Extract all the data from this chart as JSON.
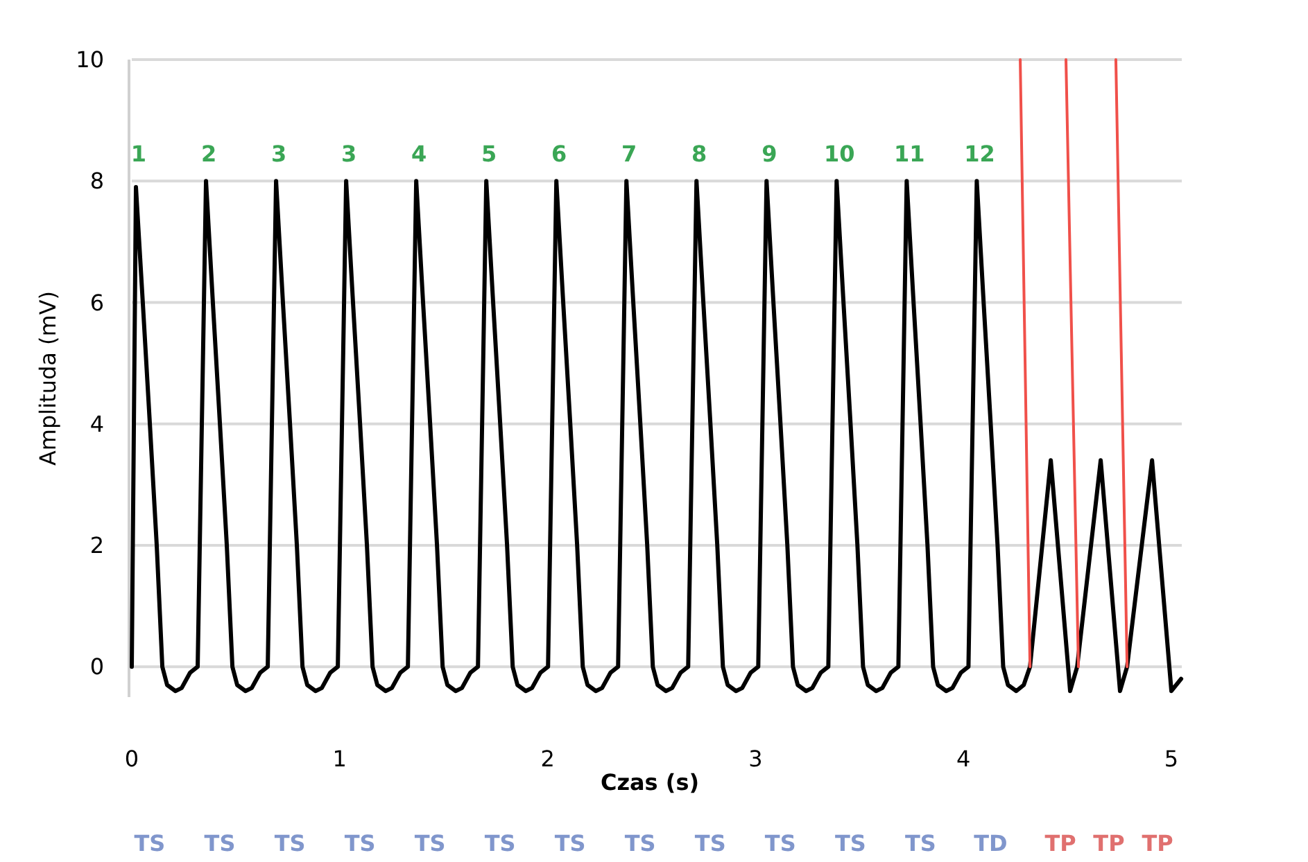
{
  "chart_data": {
    "type": "line",
    "xlabel": "Czas (s)",
    "ylabel": "Amplituda (mV)",
    "xlim": [
      0,
      5.05
    ],
    "ylim": [
      -0.5,
      10
    ],
    "xticks": [
      0,
      1,
      2,
      3,
      4,
      5
    ],
    "yticks": [
      0,
      2,
      4,
      6,
      8,
      10
    ],
    "grid": "y",
    "line_style": "solid",
    "marker": "none",
    "series": [
      {
        "color": "#000000",
        "x": [
          0,
          0.02,
          0.053,
          0.087,
          0.12,
          0.147,
          0.17,
          0.21,
          0.24,
          0.28,
          0.317,
          0.357,
          0.39,
          0.424,
          0.457,
          0.484,
          0.507,
          0.547,
          0.577,
          0.617,
          0.654,
          0.694,
          0.727,
          0.761,
          0.794,
          0.821,
          0.844,
          0.884,
          0.914,
          0.954,
          0.991,
          1.031,
          1.064,
          1.098,
          1.131,
          1.158,
          1.181,
          1.221,
          1.251,
          1.291,
          1.328,
          1.368,
          1.401,
          1.435,
          1.468,
          1.495,
          1.518,
          1.558,
          1.588,
          1.628,
          1.665,
          1.705,
          1.738,
          1.772,
          1.805,
          1.832,
          1.855,
          1.895,
          1.925,
          1.965,
          2.002,
          2.042,
          2.075,
          2.109,
          2.142,
          2.169,
          2.192,
          2.232,
          2.262,
          2.302,
          2.339,
          2.379,
          2.412,
          2.446,
          2.479,
          2.506,
          2.529,
          2.569,
          2.599,
          2.639,
          2.676,
          2.716,
          2.749,
          2.783,
          2.816,
          2.843,
          2.866,
          2.906,
          2.936,
          2.976,
          3.013,
          3.053,
          3.086,
          3.12,
          3.153,
          3.18,
          3.203,
          3.243,
          3.273,
          3.313,
          3.35,
          3.39,
          3.423,
          3.457,
          3.49,
          3.517,
          3.54,
          3.58,
          3.61,
          3.65,
          3.687,
          3.727,
          3.76,
          3.794,
          3.827,
          3.854,
          3.877,
          3.917,
          3.947,
          3.987,
          4.024,
          4.064,
          4.097,
          4.131,
          4.164,
          4.191,
          4.214,
          4.254,
          4.29,
          4.32,
          4.42,
          4.513,
          4.547,
          4.66,
          4.753,
          4.787,
          4.907,
          5.0,
          5.047
        ],
        "values": [
          0,
          7.9,
          6,
          4,
          2,
          0,
          -0.3,
          -0.4,
          -0.35,
          -0.1,
          0,
          8,
          6,
          4,
          2,
          0,
          -0.3,
          -0.4,
          -0.35,
          -0.1,
          0,
          8,
          6,
          4,
          2,
          0,
          -0.3,
          -0.4,
          -0.35,
          -0.1,
          0,
          8,
          6,
          4,
          2,
          0,
          -0.3,
          -0.4,
          -0.35,
          -0.1,
          0,
          8,
          6,
          4,
          2,
          0,
          -0.3,
          -0.4,
          -0.35,
          -0.1,
          0,
          8,
          6,
          4,
          2,
          0,
          -0.3,
          -0.4,
          -0.35,
          -0.1,
          0,
          8,
          6,
          4,
          2,
          0,
          -0.3,
          -0.4,
          -0.35,
          -0.1,
          0,
          8,
          6,
          4,
          2,
          0,
          -0.3,
          -0.4,
          -0.35,
          -0.1,
          0,
          8,
          6,
          4,
          2,
          0,
          -0.3,
          -0.4,
          -0.35,
          -0.1,
          0,
          8,
          6,
          4,
          2,
          0,
          -0.3,
          -0.4,
          -0.35,
          -0.1,
          0,
          8,
          6,
          4,
          2,
          0,
          -0.3,
          -0.4,
          -0.35,
          -0.1,
          0,
          8,
          6,
          4,
          2,
          0,
          -0.3,
          -0.4,
          -0.35,
          -0.1,
          0,
          8,
          6,
          4,
          2,
          0,
          -0.3,
          -0.4,
          -0.3,
          0,
          3.4,
          -0.4,
          0,
          3.4,
          -0.4,
          0,
          3.4,
          -0.4,
          -0.2
        ]
      },
      {
        "color": "#f0504a",
        "x": [
          4.273,
          4.32
        ],
        "values": [
          10,
          0
        ]
      },
      {
        "color": "#f0504a",
        "x": [
          4.493,
          4.553
        ],
        "values": [
          10,
          0
        ]
      },
      {
        "color": "#f0504a",
        "x": [
          4.733,
          4.787
        ],
        "values": [
          10,
          0
        ]
      }
    ],
    "annotations": [
      {
        "text": "1",
        "x": 0.02,
        "y": 8
      },
      {
        "text": "2",
        "x": 0.357,
        "y": 8
      },
      {
        "text": "3",
        "x": 0.694,
        "y": 8
      },
      {
        "text": "3",
        "x": 1.031,
        "y": 8
      },
      {
        "text": "4",
        "x": 1.368,
        "y": 8
      },
      {
        "text": "5",
        "x": 1.705,
        "y": 8
      },
      {
        "text": "6",
        "x": 2.042,
        "y": 8
      },
      {
        "text": "7",
        "x": 2.379,
        "y": 8
      },
      {
        "text": "8",
        "x": 2.716,
        "y": 8
      },
      {
        "text": "9",
        "x": 3.053,
        "y": 8
      },
      {
        "text": "10",
        "x": 3.39,
        "y": 8
      },
      {
        "text": "11",
        "x": 3.727,
        "y": 8
      },
      {
        "text": "12",
        "x": 4.064,
        "y": 8
      },
      "TS",
      "TS",
      "TS",
      "TS",
      "TS",
      "TS",
      "TS",
      "TS",
      "TS",
      "TS",
      "TS",
      "TS",
      "TD",
      "TP",
      "TP",
      "TP"
    ]
  }
}
